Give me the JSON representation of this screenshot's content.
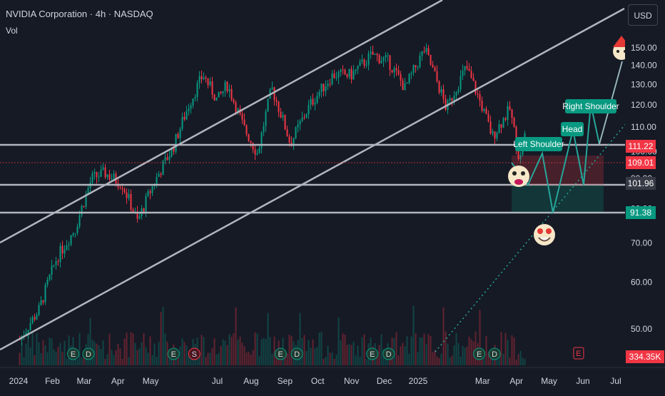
{
  "header": {
    "title": "NVIDIA Corporation · 4h · NASDAQ",
    "vol_label": "Vol",
    "currency_button": "USD"
  },
  "chart_data": {
    "type": "line",
    "title": "NVIDIA Corporation · 4h · NASDAQ",
    "x_ticks": [
      "2024",
      "Feb",
      "Mar",
      "Apr",
      "May",
      "Jul",
      "Aug",
      "Sep",
      "Oct",
      "Nov",
      "Dec",
      "2025",
      "Mar",
      "Apr",
      "May",
      "Jun",
      "Jul"
    ],
    "y_ticks": [
      50,
      60,
      70,
      80,
      90,
      100,
      110,
      120,
      130,
      140,
      150
    ],
    "y_tick_labels": [
      "50.00",
      "60.00",
      "70.00",
      "80.00",
      "90.00",
      "100.00",
      "110.00",
      "120.00",
      "130.00",
      "140.00",
      "150.00"
    ],
    "scale": "log",
    "price_series": [
      {
        "x": "2024-01-02",
        "y": 48
      },
      {
        "x": "2024-01-20",
        "y": 54
      },
      {
        "x": "2024-02-05",
        "y": 66
      },
      {
        "x": "2024-02-22",
        "y": 74
      },
      {
        "x": "2024-03-08",
        "y": 90
      },
      {
        "x": "2024-03-20",
        "y": 92
      },
      {
        "x": "2024-04-05",
        "y": 88
      },
      {
        "x": "2024-04-19",
        "y": 76
      },
      {
        "x": "2024-05-01",
        "y": 86
      },
      {
        "x": "2024-05-22",
        "y": 102
      },
      {
        "x": "2024-06-05",
        "y": 120
      },
      {
        "x": "2024-06-18",
        "y": 135
      },
      {
        "x": "2024-07-01",
        "y": 122
      },
      {
        "x": "2024-07-10",
        "y": 130
      },
      {
        "x": "2024-07-25",
        "y": 110
      },
      {
        "x": "2024-08-07",
        "y": 99
      },
      {
        "x": "2024-08-20",
        "y": 128
      },
      {
        "x": "2024-09-06",
        "y": 103
      },
      {
        "x": "2024-09-25",
        "y": 121
      },
      {
        "x": "2024-10-15",
        "y": 135
      },
      {
        "x": "2024-11-01",
        "y": 135
      },
      {
        "x": "2024-11-20",
        "y": 146
      },
      {
        "x": "2024-12-05",
        "y": 142
      },
      {
        "x": "2024-12-20",
        "y": 128
      },
      {
        "x": "2025-01-07",
        "y": 149
      },
      {
        "x": "2025-01-27",
        "y": 118
      },
      {
        "x": "2025-02-14",
        "y": 139
      },
      {
        "x": "2025-03-10",
        "y": 106
      },
      {
        "x": "2025-03-26",
        "y": 118
      },
      {
        "x": "2025-04-04",
        "y": 96
      },
      {
        "x": "2025-04-10",
        "y": 109
      }
    ],
    "horizontal_levels": [
      {
        "value": 111.22,
        "label": "111.22",
        "color": "#f23645"
      },
      {
        "value": 109.01,
        "label": "109.01",
        "color": "#f23645"
      },
      {
        "value": 101.96,
        "label": "101.96",
        "color": "#363a45"
      },
      {
        "value": 91.38,
        "label": "91.38",
        "color": "#089981"
      }
    ],
    "volume_label": "334.35K",
    "volume_label_color": "#f23645",
    "annotations": [
      "Left Shoulder",
      "Head",
      "Right Shoulder"
    ],
    "event_markers": [
      {
        "type": "dividend",
        "symbol": "D"
      },
      {
        "type": "earnings",
        "symbol": "E"
      },
      {
        "type": "split",
        "symbol": "S"
      }
    ],
    "grid": false,
    "colors": {
      "up": "#089981",
      "down": "#f23645",
      "background": "#161a25",
      "text": "#d1d4dc",
      "pattern": "#26a69a",
      "lines": "#b2b5be"
    }
  }
}
